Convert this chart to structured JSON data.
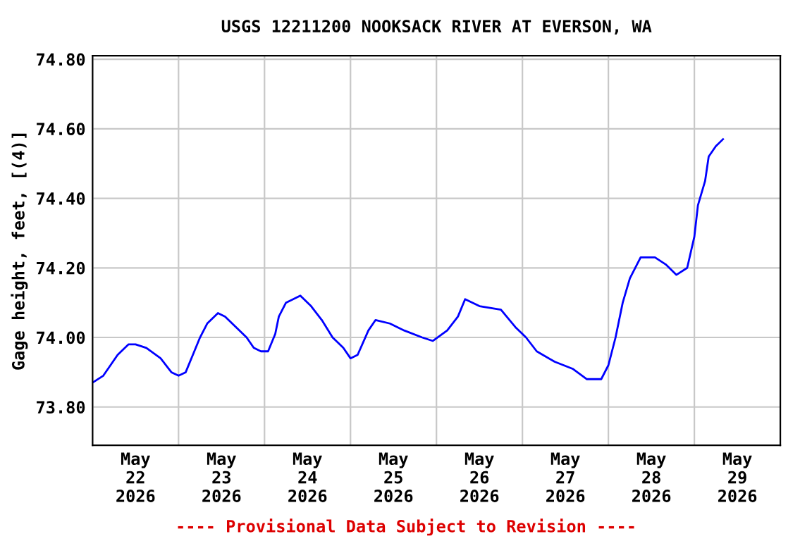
{
  "chart_data": {
    "type": "line",
    "title": "USGS 12211200 NOOKSACK RIVER AT EVERSON, WA",
    "ylabel": "Gage height, feet, [(4)]",
    "annotations": [
      "---- Provisional Data Subject to Revision ----"
    ],
    "x": [
      "2026-05-22T00:00",
      "2026-05-22T03:00",
      "2026-05-22T05:00",
      "2026-05-22T07:00",
      "2026-05-22T10:00",
      "2026-05-22T12:00",
      "2026-05-22T15:00",
      "2026-05-22T19:00",
      "2026-05-22T22:00",
      "2026-05-23T00:00",
      "2026-05-23T02:00",
      "2026-05-23T04:00",
      "2026-05-23T06:00",
      "2026-05-23T08:00",
      "2026-05-23T11:00",
      "2026-05-23T13:00",
      "2026-05-23T16:00",
      "2026-05-23T19:00",
      "2026-05-23T21:00",
      "2026-05-23T23:00",
      "2026-05-24T01:00",
      "2026-05-24T03:00",
      "2026-05-24T04:00",
      "2026-05-24T06:00",
      "2026-05-24T10:00",
      "2026-05-24T13:00",
      "2026-05-24T16:00",
      "2026-05-24T19:00",
      "2026-05-24T22:00",
      "2026-05-25T00:00",
      "2026-05-25T02:00",
      "2026-05-25T05:00",
      "2026-05-25T07:00",
      "2026-05-25T11:00",
      "2026-05-25T15:00",
      "2026-05-25T20:00",
      "2026-05-25T23:00",
      "2026-05-26T03:00",
      "2026-05-26T06:00",
      "2026-05-26T08:00",
      "2026-05-26T12:00",
      "2026-05-26T18:00",
      "2026-05-26T22:00",
      "2026-05-27T01:00",
      "2026-05-27T04:00",
      "2026-05-27T09:00",
      "2026-05-27T14:00",
      "2026-05-27T18:00",
      "2026-05-27T22:00",
      "2026-05-28T00:00",
      "2026-05-28T02:00",
      "2026-05-28T04:00",
      "2026-05-28T06:00",
      "2026-05-28T09:00",
      "2026-05-28T13:00",
      "2026-05-28T16:00",
      "2026-05-28T19:00",
      "2026-05-28T22:00",
      "2026-05-29T00:00",
      "2026-05-29T01:00",
      "2026-05-29T03:00",
      "2026-05-29T04:00",
      "2026-05-29T06:00",
      "2026-05-29T08:00"
    ],
    "series": [
      {
        "color": "#0000ff",
        "values": [
          73.87,
          73.89,
          73.92,
          73.95,
          73.98,
          73.98,
          73.97,
          73.94,
          73.9,
          73.89,
          73.9,
          73.95,
          74.0,
          74.04,
          74.07,
          74.06,
          74.03,
          74.0,
          73.97,
          73.96,
          73.96,
          74.01,
          74.06,
          74.1,
          74.12,
          74.09,
          74.05,
          74.0,
          73.97,
          73.94,
          73.95,
          74.02,
          74.05,
          74.04,
          74.02,
          74.0,
          73.99,
          74.02,
          74.06,
          74.11,
          74.09,
          74.08,
          74.03,
          74.0,
          73.96,
          73.93,
          73.91,
          73.88,
          73.88,
          73.92,
          74.0,
          74.1,
          74.17,
          74.23,
          74.23,
          74.21,
          74.18,
          74.2,
          74.29,
          74.38,
          74.45,
          74.52,
          74.55,
          74.57
        ]
      }
    ],
    "xlim": [
      "2026-05-22T00:00",
      "2026-05-30T00:00"
    ],
    "xticks": [
      {
        "value": "2026-05-22T00:00",
        "label": null
      },
      {
        "value": "2026-05-22T12:00",
        "label": "May\n22\n2026"
      },
      {
        "value": "2026-05-23T00:00",
        "label": null
      },
      {
        "value": "2026-05-23T12:00",
        "label": "May\n23\n2026"
      },
      {
        "value": "2026-05-24T00:00",
        "label": null
      },
      {
        "value": "2026-05-24T12:00",
        "label": "May\n24\n2026"
      },
      {
        "value": "2026-05-25T00:00",
        "label": null
      },
      {
        "value": "2026-05-25T12:00",
        "label": "May\n25\n2026"
      },
      {
        "value": "2026-05-26T00:00",
        "label": null
      },
      {
        "value": "2026-05-26T12:00",
        "label": "May\n26\n2026"
      },
      {
        "value": "2026-05-27T00:00",
        "label": null
      },
      {
        "value": "2026-05-27T12:00",
        "label": "May\n27\n2026"
      },
      {
        "value": "2026-05-28T00:00",
        "label": null
      },
      {
        "value": "2026-05-28T12:00",
        "label": "May\n28\n2026"
      },
      {
        "value": "2026-05-29T00:00",
        "label": null
      },
      {
        "value": "2026-05-29T12:00",
        "label": "May\n29\n2026"
      },
      {
        "value": "2026-05-30T00:00",
        "label": null
      }
    ],
    "ylim": [
      73.69,
      74.81
    ],
    "yticks": [
      {
        "value": 73.8,
        "label": "73.80"
      },
      {
        "value": 74.0,
        "label": "74.00"
      },
      {
        "value": 74.2,
        "label": "74.20"
      },
      {
        "value": 74.4,
        "label": "74.40"
      },
      {
        "value": 74.6,
        "label": "74.60"
      },
      {
        "value": 74.8,
        "label": "74.80"
      }
    ],
    "grid": true,
    "line_style": "solid"
  }
}
